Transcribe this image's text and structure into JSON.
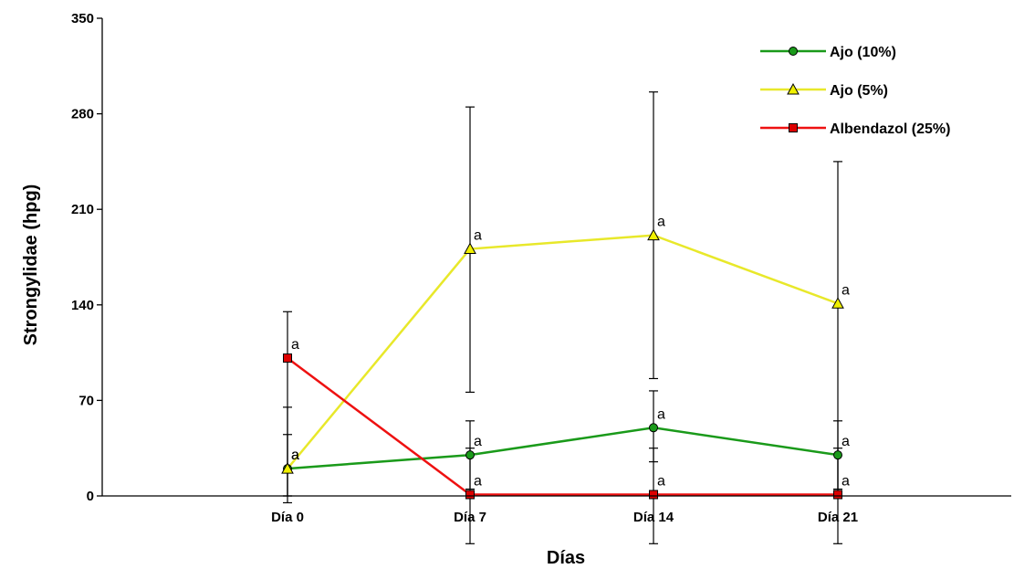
{
  "chart_data": {
    "type": "line",
    "title": "",
    "xlabel": "Días",
    "ylabel": "Strongylidae (hpg)",
    "categories": [
      "Día 0",
      "Día 7",
      "Día 14",
      "Día 21"
    ],
    "ylim": [
      0,
      350
    ],
    "yticks": [
      0,
      70,
      140,
      210,
      280,
      350
    ],
    "grid": false,
    "legend_position": "top-right",
    "significance_label": "a",
    "series": [
      {
        "name": "Ajo (10%)",
        "color": "#1a9a1a",
        "marker": "circle",
        "marker_fill": "#1a9a1a",
        "values": [
          20,
          30,
          50,
          30
        ],
        "error_low": [
          0,
          5,
          25,
          5
        ],
        "error_high": [
          65,
          55,
          77,
          55
        ]
      },
      {
        "name": "Ajo (5%)",
        "color": "#e8e82a",
        "marker": "triangle",
        "marker_fill": "#f0f000",
        "values": [
          20,
          181,
          191,
          141
        ],
        "error_low": [
          0,
          76,
          86,
          0
        ],
        "error_high": [
          45,
          285,
          296,
          245
        ]
      },
      {
        "name": "Albendazol (25%)",
        "color": "#ee1111",
        "marker": "square",
        "marker_fill": "#dd0000",
        "values": [
          101,
          1,
          1,
          1
        ],
        "error_low": [
          -5,
          -35,
          -35,
          -35
        ],
        "error_high": [
          135,
          35,
          35,
          35
        ]
      }
    ]
  }
}
